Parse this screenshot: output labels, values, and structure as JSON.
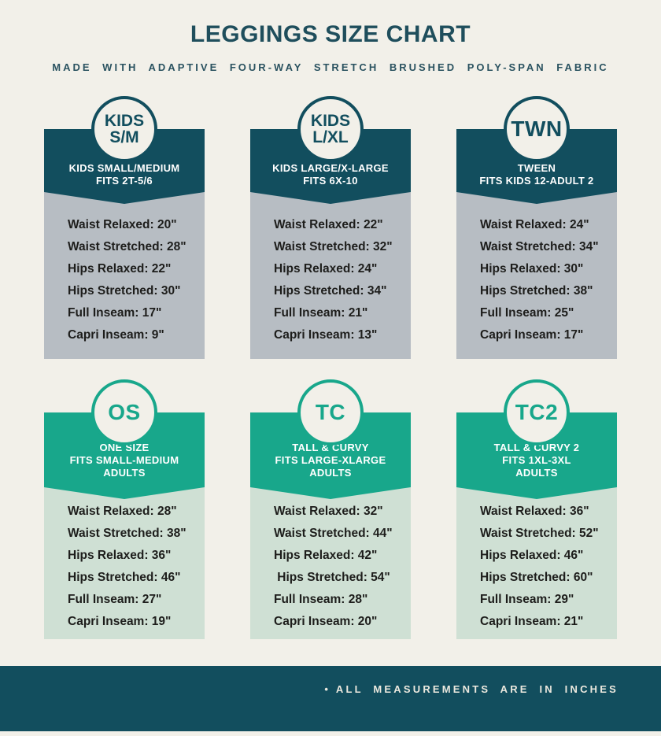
{
  "header": {
    "title": "LEGGINGS SIZE CHART",
    "subtitle": "MADE WITH ADAPTIVE FOUR-WAY STRETCH BRUSHED POLY-SPAN FABRIC"
  },
  "footer": {
    "bullet": "•",
    "note": "ALL MEASUREMENTS ARE IN INCHES"
  },
  "colors": {
    "background": "#f2f0e9",
    "teal": "#124e5e",
    "green": "#18a78b",
    "gray_panel": "#b7bdc3",
    "light_green_panel": "#cfe0d4",
    "dark_text": "#1d1d1b",
    "white_text": "#ffffff"
  },
  "cards": [
    {
      "id": "kids-sm",
      "theme": "teal",
      "badge_lines": [
        "KIDS",
        "S/M"
      ],
      "header_lines": [
        "KIDS SMALL/MEDIUM",
        "FITS 2T-5/6"
      ],
      "measurements": [
        "Waist Relaxed: 20\"",
        "Waist Stretched: 28\"",
        "Hips Relaxed: 22\"",
        "Hips Stretched: 30\"",
        "Full Inseam: 17\"",
        "Capri Inseam: 9\""
      ]
    },
    {
      "id": "kids-lxl",
      "theme": "teal",
      "badge_lines": [
        "KIDS",
        "L/XL"
      ],
      "header_lines": [
        "KIDS LARGE/X-LARGE",
        "FITS 6X-10"
      ],
      "measurements": [
        "Waist Relaxed: 22\"",
        "Waist Stretched: 32\"",
        "Hips Relaxed: 24\"",
        "Hips Stretched: 34\"",
        "Full Inseam: 21\"",
        "Capri Inseam: 13\""
      ]
    },
    {
      "id": "twn",
      "theme": "teal",
      "badge_lines": [
        "TWN"
      ],
      "header_lines": [
        "TWEEN",
        "FITS KIDS 12-ADULT 2"
      ],
      "measurements": [
        "Waist Relaxed: 24\"",
        "Waist Stretched: 34\"",
        "Hips Relaxed: 30\"",
        "Hips Stretched: 38\"",
        "Full Inseam: 25\"",
        "Capri Inseam: 17\""
      ]
    },
    {
      "id": "os",
      "theme": "green",
      "badge_lines": [
        "OS"
      ],
      "header_lines": [
        "ONE SIZE",
        "FITS SMALL-MEDIUM",
        "ADULTS"
      ],
      "measurements": [
        "Waist Relaxed: 28\"",
        "Waist Stretched: 38\"",
        "Hips Relaxed: 36\"",
        "Hips Stretched: 46\"",
        "Full Inseam: 27\"",
        "Capri Inseam: 19\""
      ]
    },
    {
      "id": "tc",
      "theme": "green",
      "badge_lines": [
        "TC"
      ],
      "header_lines": [
        "TALL & CURVY",
        "FITS LARGE-XLARGE",
        "ADULTS"
      ],
      "measurements": [
        "Waist Relaxed: 32\"",
        "Waist Stretched: 44\"",
        "Hips Relaxed: 42\"",
        " Hips Stretched: 54\"",
        "Full Inseam: 28\"",
        "Capri Inseam: 20\""
      ]
    },
    {
      "id": "tc2",
      "theme": "green",
      "badge_lines": [
        "TC2"
      ],
      "header_lines": [
        "TALL & CURVY 2",
        "FITS 1XL-3XL",
        "ADULTS"
      ],
      "measurements": [
        "Waist Relaxed: 36\"",
        "Waist Stretched: 52\"",
        "Hips Relaxed: 46\"",
        "Hips Stretched: 60\"",
        "Full Inseam: 29\"",
        "Capri Inseam: 21\""
      ]
    }
  ],
  "chart_data": {
    "type": "table",
    "title": "LEGGINGS SIZE CHART",
    "subtitle": "MADE WITH ADAPTIVE FOUR-WAY STRETCH BRUSHED POLY-SPAN FABRIC",
    "row_labels": [
      "Waist Relaxed",
      "Waist Stretched",
      "Hips Relaxed",
      "Hips Stretched",
      "Full Inseam",
      "Capri Inseam"
    ],
    "unit": "inches",
    "columns": [
      {
        "size": "KIDS S/M",
        "description": "KIDS SMALL/MEDIUM",
        "fits": "FITS 2T-5/6",
        "values_inches": [
          20,
          28,
          22,
          30,
          17,
          9
        ]
      },
      {
        "size": "KIDS L/XL",
        "description": "KIDS LARGE/X-LARGE",
        "fits": "FITS 6X-10",
        "values_inches": [
          22,
          32,
          24,
          34,
          21,
          13
        ]
      },
      {
        "size": "TWN",
        "description": "TWEEN",
        "fits": "FITS KIDS 12-ADULT 2",
        "values_inches": [
          24,
          34,
          30,
          38,
          25,
          17
        ]
      },
      {
        "size": "OS",
        "description": "ONE SIZE",
        "fits": "FITS SMALL-MEDIUM ADULTS",
        "values_inches": [
          28,
          38,
          36,
          46,
          27,
          19
        ]
      },
      {
        "size": "TC",
        "description": "TALL & CURVY",
        "fits": "FITS LARGE-XLARGE ADULTS",
        "values_inches": [
          32,
          44,
          42,
          54,
          28,
          20
        ]
      },
      {
        "size": "TC2",
        "description": "TALL & CURVY 2",
        "fits": "FITS 1XL-3XL ADULTS",
        "values_inches": [
          36,
          52,
          46,
          60,
          29,
          21
        ]
      }
    ],
    "note": "ALL MEASUREMENTS ARE IN INCHES"
  }
}
